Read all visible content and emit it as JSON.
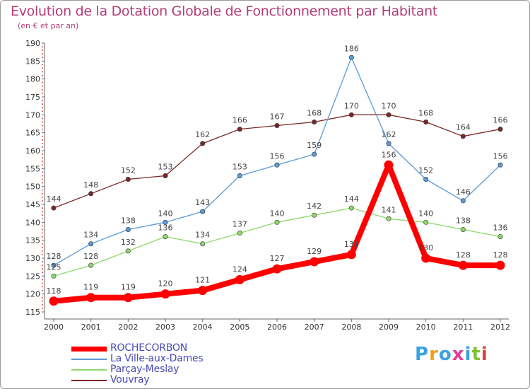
{
  "header": {
    "title": "Evolution de la Dotation Globale de Fonctionnement par Habitant",
    "subtitle": "(en € et par an)"
  },
  "chart_data": {
    "type": "line",
    "x": [
      "2000",
      "2001",
      "2002",
      "2003",
      "2004",
      "2005",
      "2006",
      "2007",
      "2008",
      "2009",
      "2010",
      "2011",
      "2012"
    ],
    "ylim": [
      115,
      190
    ],
    "yticks": [
      115,
      120,
      125,
      130,
      135,
      140,
      145,
      150,
      155,
      160,
      165,
      170,
      175,
      180,
      185,
      190
    ],
    "grid": false,
    "legend_position": "bottom-left",
    "series": [
      {
        "name": "Vouvray",
        "color": "#7a2828",
        "values": [
          144,
          148,
          152,
          153,
          162,
          166,
          167,
          168,
          170,
          170,
          168,
          164,
          166
        ]
      },
      {
        "name": "La Ville-aux-Dames",
        "color": "#5a9ad6",
        "values": [
          128,
          134,
          138,
          140,
          143,
          153,
          156,
          159,
          186,
          162,
          152,
          146,
          156
        ]
      },
      {
        "name": "Parçay-Meslay",
        "color": "#8ed86a",
        "values": [
          125,
          128,
          132,
          136,
          134,
          137,
          140,
          142,
          144,
          141,
          140,
          138,
          136
        ]
      },
      {
        "name": "ROCHECORBON",
        "color": "#ff0000",
        "values": [
          118,
          119,
          119,
          120,
          121,
          124,
          127,
          129,
          131,
          156,
          130,
          128,
          128
        ]
      }
    ]
  },
  "legend": [
    {
      "label": "ROCHECORBON",
      "color": "#ff0000",
      "thick": true
    },
    {
      "label": "La Ville-aux-Dames",
      "color": "#5a9ad6",
      "thick": false
    },
    {
      "label": "Parçay-Meslay",
      "color": "#8ed86a",
      "thick": false
    },
    {
      "label": "Vouvray",
      "color": "#7a2828",
      "thick": false
    }
  ],
  "logo": {
    "letters": [
      "P",
      "r",
      "o",
      "x",
      "i",
      "t",
      "i"
    ],
    "colors": [
      "#3aa3e0",
      "#f0a020",
      "#3aa3e0",
      "#e0409a",
      "#3aa3e0",
      "#80c030",
      "#e04040"
    ]
  }
}
